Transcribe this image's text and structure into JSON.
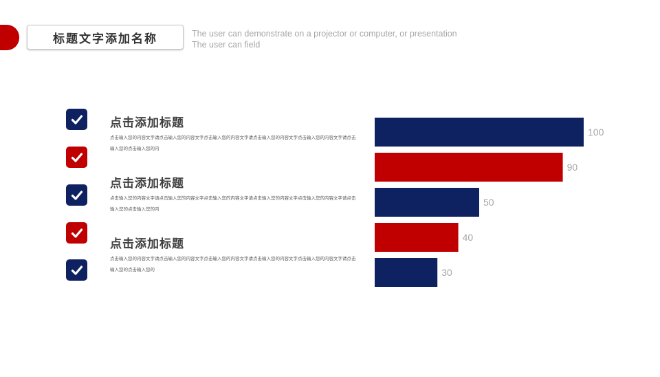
{
  "header": {
    "title": "标题文字添加名称",
    "subtitle_line1": "The user can demonstrate on a projector or computer, or presentation",
    "subtitle_line2": "The user can field"
  },
  "colors": {
    "navy": "#0e2160",
    "red": "#c00000",
    "label_gray": "#a6a6a6"
  },
  "checks": [
    {
      "color": "navy",
      "icon": "checkmark-icon"
    },
    {
      "color": "red",
      "icon": "checkmark-icon"
    },
    {
      "color": "navy",
      "icon": "checkmark-icon"
    },
    {
      "color": "red",
      "icon": "checkmark-icon"
    },
    {
      "color": "navy",
      "icon": "checkmark-icon"
    }
  ],
  "items": [
    {
      "title": "点击添加标题",
      "body": "点击输入您的内容文字请点击输入您的内容文字点击输入您的内容文字请点击输入您的内容文字点击输入您的内容文字请点击输入您的点击输入您的内"
    },
    {
      "title": "点击添加标题",
      "body": "点击输入您的内容文字请点击输入您的内容文字点击输入您的内容文字请点击输入您的内容文字点击输入您的内容文字请点击输入您的点击输入您的内"
    },
    {
      "title": "点击添加标题",
      "body": "点击输入您的内容文字请点击输入您的内容文字点击输入您的内容文字请点击输入您的内容文字点击输入您的内容文字请点击输入您的点击输入您的"
    }
  ],
  "chart_data": {
    "type": "bar",
    "orientation": "horizontal",
    "values": [
      100,
      90,
      50,
      40,
      30
    ],
    "bar_colors": [
      "#0e2160",
      "#c00000",
      "#0e2160",
      "#c00000",
      "#0e2160"
    ],
    "xlim": [
      0,
      100
    ],
    "data_labels": true,
    "grid": false,
    "legend": "none"
  }
}
